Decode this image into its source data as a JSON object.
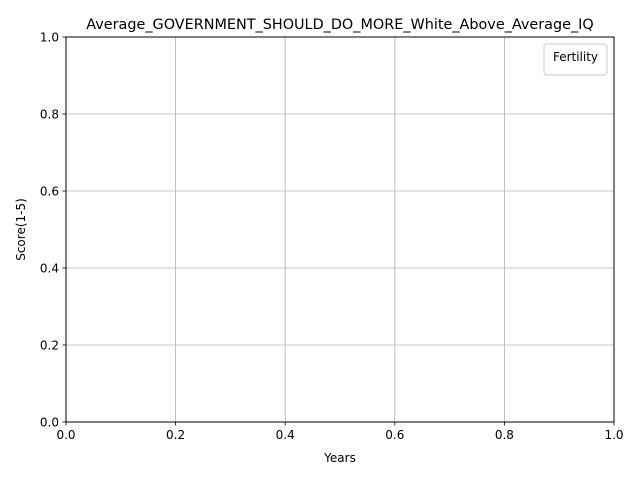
{
  "chart_data": {
    "type": "line",
    "title": "Average_GOVERNMENT_SHOULD_DO_MORE_White_Above_Average_IQ",
    "xlabel": "Years",
    "ylabel": "Score(1-5)",
    "xlim": [
      0.0,
      1.0
    ],
    "ylim": [
      0.0,
      1.0
    ],
    "xticks": [
      "0.0",
      "0.2",
      "0.4",
      "0.6",
      "0.8",
      "1.0"
    ],
    "yticks": [
      "0.0",
      "0.2",
      "0.4",
      "0.6",
      "0.8",
      "1.0"
    ],
    "grid": true,
    "legend": {
      "title": "Fertility",
      "placement": "top-right",
      "entries": []
    },
    "series": []
  },
  "colors": {
    "background": "#ffffff",
    "axes": "#000000",
    "grid": "#b0b0b0",
    "legend_border": "#cccccc"
  }
}
